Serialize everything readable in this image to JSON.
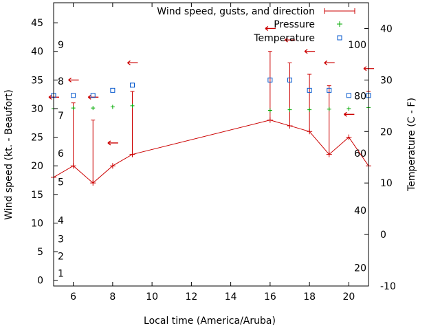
{
  "chart_data": {
    "type": "line",
    "xlabel": "Local time (America/Aruba)",
    "ylabel": "Wind speed (kt. - Beaufort)",
    "y2label": "Temperature (C - F)",
    "xlim": [
      5,
      21
    ],
    "ylim": [
      -1,
      48.5
    ],
    "y2lim": [
      -10,
      45
    ],
    "x_ticks": [
      6,
      8,
      10,
      12,
      14,
      16,
      18,
      20
    ],
    "y_ticks": [
      0,
      5,
      10,
      15,
      20,
      25,
      30,
      35,
      40,
      45
    ],
    "y2_ticks": [
      -10,
      0,
      10,
      20,
      30,
      40
    ],
    "grid": false,
    "legend_position": "top-right",
    "beaufort_scale": {
      "labels": [
        "1",
        "2",
        "3",
        "4",
        "5",
        "6",
        "7",
        "8",
        "9"
      ],
      "wind_speed_kt": [
        1.2,
        4.2,
        7.2,
        10.5,
        17.2,
        22.2,
        28.8,
        34.8,
        41.2
      ]
    },
    "fahrenheit_scale": {
      "labels": [
        "20",
        "40",
        "60",
        "80",
        "100"
      ],
      "wind_speed_kt": [
        2.2,
        12.2,
        22.2,
        32.2,
        41.2
      ]
    },
    "series": [
      {
        "name": "Wind speed, gusts, and direction",
        "color": "#cc0000",
        "x": [
          5,
          6,
          7,
          8,
          9,
          16,
          17,
          18,
          19,
          20,
          21
        ],
        "values": [
          18,
          20,
          17,
          20,
          22,
          28,
          27,
          26,
          22,
          25,
          20
        ],
        "gusts": [
          null,
          31,
          28,
          null,
          33,
          40,
          38,
          36,
          34,
          null,
          33
        ],
        "direction_arrow_y": [
          32,
          35,
          32,
          24,
          38,
          44,
          42,
          40,
          38,
          29,
          37
        ]
      },
      {
        "name": "Pressure",
        "color": "#00aa00",
        "x": [
          5,
          6,
          7,
          8,
          9,
          16,
          17,
          18,
          19,
          20,
          21
        ],
        "values": [
          30,
          30.1,
          30.1,
          30.3,
          30.5,
          29.7,
          29.8,
          29.8,
          29.9,
          30,
          30.2
        ]
      },
      {
        "name": "Temperature",
        "color": "#0055cc",
        "axis": "y2",
        "x": [
          5,
          6,
          7,
          8,
          9,
          16,
          17,
          18,
          19,
          20,
          21
        ],
        "values": [
          27,
          27,
          27,
          28,
          29,
          30,
          30,
          28,
          28,
          27,
          27
        ]
      }
    ]
  }
}
